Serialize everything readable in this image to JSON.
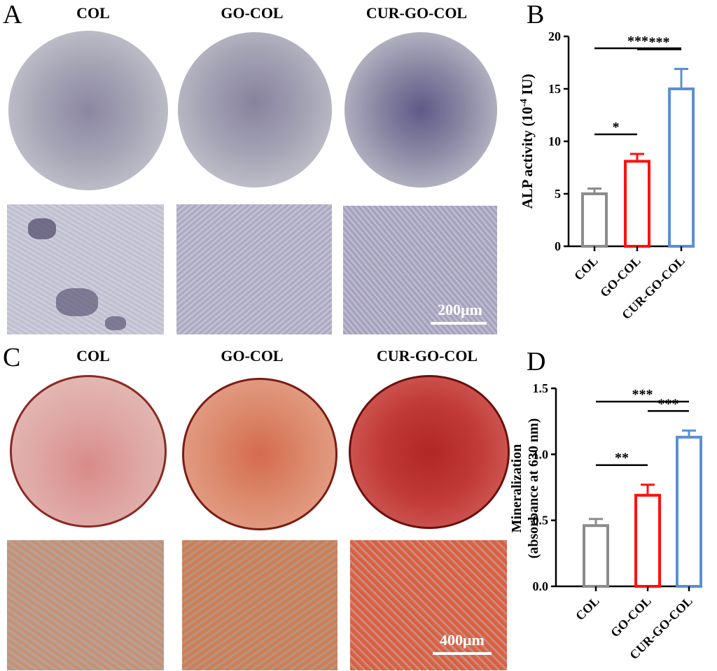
{
  "panels": {
    "A": {
      "letter": "A",
      "columns": [
        "COL",
        "GO-COL",
        "CUR-GO-COL"
      ],
      "scale_bar": "200μm"
    },
    "C": {
      "letter": "C",
      "columns": [
        "COL",
        "GO-COL",
        "CUR-GO-COL"
      ],
      "scale_bar": "400μm"
    },
    "B": {
      "letter": "B"
    },
    "D": {
      "letter": "D"
    }
  },
  "colors": {
    "COL": "#8c8c8c",
    "GO-COL": "#ff1010",
    "CUR-GO-COL": "#5b8fd6",
    "alp_stain": "#6b6390",
    "ars_stain": "#b8332e"
  },
  "chart_data": [
    {
      "type": "bar",
      "panel": "B",
      "categories": [
        "COL",
        "GO-COL",
        "CUR-GO-COL"
      ],
      "values": [
        5.0,
        8.1,
        15.0
      ],
      "errors": [
        0.5,
        0.7,
        1.9
      ],
      "ylabel_html": "ALP activity (10<tspan baseline-shift=\"super\" font-size=\"14\">-4</tspan> IU)",
      "ylabel_parts": [
        "ALP activity (10",
        "-4",
        " IU)"
      ],
      "ylim": [
        0,
        20
      ],
      "yticks": [
        0,
        5,
        10,
        15,
        20
      ],
      "yticklabels": [
        "0",
        "5",
        "10",
        "15",
        "20"
      ],
      "significance": [
        {
          "from": "COL",
          "to": "GO-COL",
          "label": "*"
        },
        {
          "from": "GO-COL",
          "to": "CUR-GO-COL",
          "label": "***"
        },
        {
          "from": "COL",
          "to": "CUR-GO-COL",
          "label": "***"
        }
      ]
    },
    {
      "type": "bar",
      "panel": "D",
      "categories": [
        "COL",
        "GO-COL",
        "CUR-GO-COL"
      ],
      "values": [
        0.46,
        0.69,
        1.13
      ],
      "errors": [
        0.05,
        0.08,
        0.05
      ],
      "ylabel_parts": [
        "Mineralization",
        "(absorbance at 630 nm)"
      ],
      "ylim": [
        0,
        1.5
      ],
      "yticks": [
        0,
        0.5,
        1.0,
        1.5
      ],
      "yticklabels": [
        "0.0",
        "0.5",
        "1.0",
        "1.5"
      ],
      "significance": [
        {
          "from": "COL",
          "to": "GO-COL",
          "label": "**"
        },
        {
          "from": "GO-COL",
          "to": "CUR-GO-COL",
          "label": "***"
        },
        {
          "from": "COL",
          "to": "CUR-GO-COL",
          "label": "***"
        }
      ]
    }
  ]
}
